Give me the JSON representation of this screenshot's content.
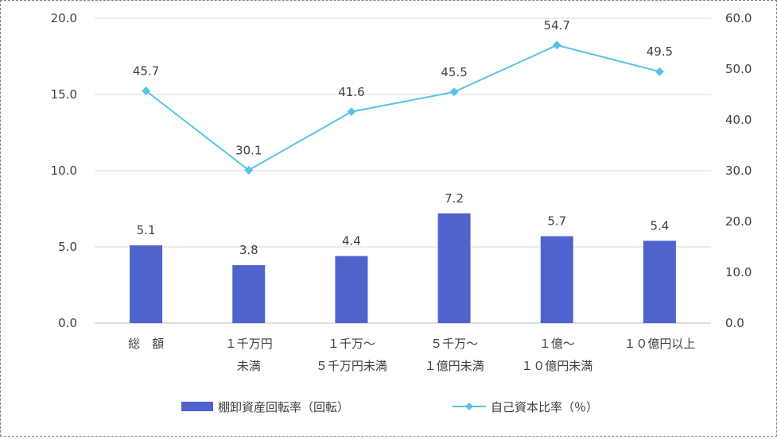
{
  "chart_data": {
    "type": "bar",
    "categories": [
      [
        "総　額"
      ],
      [
        "１千万円",
        "未満"
      ],
      [
        "１千万～",
        "５千万円未満"
      ],
      [
        "５千万～",
        "１億円未満"
      ],
      [
        "１億～",
        "１０億円未満"
      ],
      [
        "１０億円以上"
      ]
    ],
    "series": [
      {
        "name": "棚卸資産回転率（回転）",
        "type": "bar",
        "axis": "left",
        "values": [
          5.1,
          3.8,
          4.4,
          7.2,
          5.7,
          5.4
        ],
        "labels": [
          "5.1",
          "3.8",
          "4.4",
          "7.2",
          "5.7",
          "5.4"
        ],
        "color": "#4f63cc"
      },
      {
        "name": "自己資本比率（％）",
        "type": "line",
        "axis": "right",
        "values": [
          45.7,
          30.1,
          41.6,
          45.5,
          54.7,
          49.5
        ],
        "labels": [
          "45.7",
          "30.1",
          "41.6",
          "45.5",
          "54.7",
          "49.5"
        ],
        "color": "#59c2e6"
      }
    ],
    "y_left": {
      "min": 0,
      "max": 20,
      "ticks": [
        "0.0",
        "5.0",
        "10.0",
        "15.0",
        "20.0"
      ],
      "values": [
        0,
        5,
        10,
        15,
        20
      ]
    },
    "y_right": {
      "min": 0,
      "max": 60,
      "ticks": [
        "0.0",
        "10.0",
        "20.0",
        "30.0",
        "40.0",
        "50.0",
        "60.0"
      ],
      "values": [
        0,
        10,
        20,
        30,
        40,
        50,
        60
      ]
    },
    "grid": true,
    "legend": "bottom",
    "title": "",
    "xlabel": "",
    "ylabel": ""
  }
}
